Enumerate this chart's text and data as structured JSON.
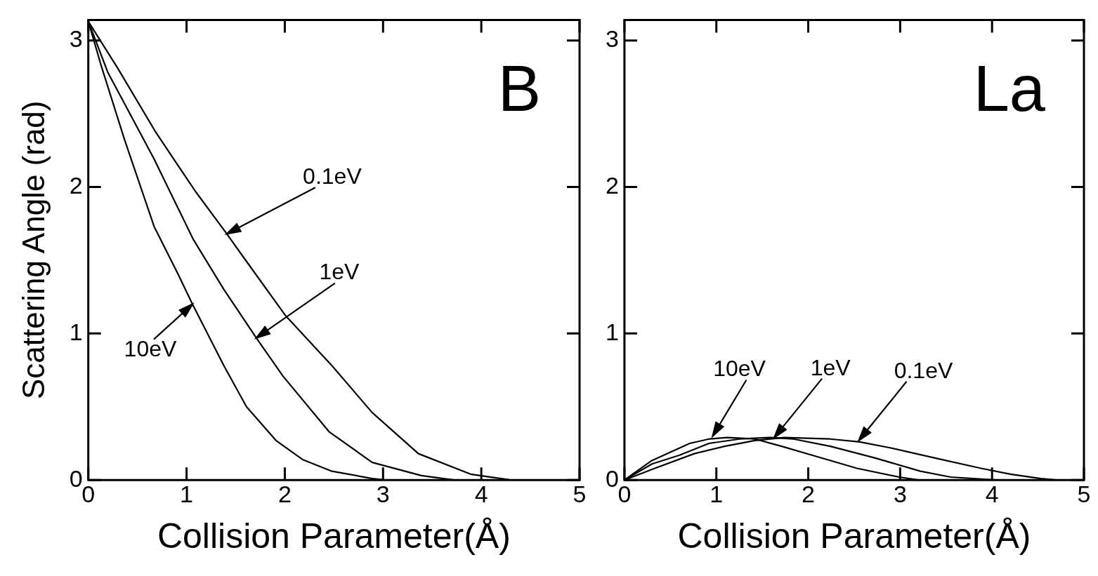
{
  "chart_data": [
    {
      "type": "line",
      "title": "B",
      "xlabel": "Collision Parameter(Å)",
      "ylabel": "Scattering Angle (rad)",
      "xlim": [
        0,
        5
      ],
      "ylim": [
        0,
        3.14
      ],
      "xticks": [
        0,
        1,
        2,
        3,
        4,
        5
      ],
      "yticks": [
        0,
        1,
        2,
        3
      ],
      "grid": false,
      "legend": false,
      "marker": "none",
      "line_style": "solid",
      "series": [
        {
          "color": "#000000",
          "x": [
            0,
            0.3,
            0.69,
            1.09,
            1.41,
            1.58,
            2.01,
            2.48,
            2.89,
            3.36,
            3.89,
            4.3
          ],
          "values": [
            3.13,
            2.81,
            2.37,
            1.97,
            1.68,
            1.52,
            1.12,
            0.78,
            0.46,
            0.18,
            0.04,
            0
          ]
        },
        {
          "color": "#000000",
          "x": [
            0,
            0.2,
            0.67,
            1.07,
            1.38,
            1.71,
            1.98,
            2.45,
            2.89,
            3.39,
            3.72
          ],
          "values": [
            3.13,
            2.78,
            2.19,
            1.64,
            1.3,
            0.97,
            0.71,
            0.33,
            0.12,
            0.03,
            0
          ]
        },
        {
          "color": "#000000",
          "x": [
            0,
            0.13,
            0.37,
            0.67,
            0.91,
            1.06,
            1.38,
            1.61,
            1.91,
            2.18,
            2.48,
            2.89,
            3.02
          ],
          "values": [
            3.13,
            2.83,
            2.32,
            1.73,
            1.41,
            1.2,
            0.78,
            0.5,
            0.27,
            0.14,
            0.06,
            0.01,
            0
          ]
        }
      ],
      "annotations": [
        {
          "text": "0.1eV",
          "x": 1.41,
          "y": 1.68
        },
        {
          "text": "1eV",
          "x": 1.71,
          "y": 0.97
        },
        {
          "text": "10eV",
          "x": 1.06,
          "y": 1.2
        }
      ]
    },
    {
      "type": "line",
      "title": "La",
      "xlabel": "Collision Parameter(Å)",
      "xlim": [
        0,
        5
      ],
      "ylim": [
        0,
        3.14
      ],
      "xticks": [
        0,
        1,
        2,
        3,
        4,
        5
      ],
      "yticks": [
        0,
        1,
        2,
        3
      ],
      "grid": false,
      "legend": false,
      "marker": "none",
      "line_style": "solid",
      "series": [
        {
          "color": "#000000",
          "x": [
            0,
            0.29,
            0.5,
            0.71,
            0.92,
            1.12,
            1.42,
            1.71,
            2.04,
            2.53,
            2.99,
            3.2
          ],
          "values": [
            0,
            0.13,
            0.19,
            0.25,
            0.28,
            0.29,
            0.28,
            0.23,
            0.17,
            0.08,
            0.02,
            0
          ]
        },
        {
          "color": "#000000",
          "x": [
            0,
            0.3,
            0.6,
            0.92,
            1.25,
            1.58,
            1.84,
            2.24,
            2.73,
            3.22,
            3.55,
            4.04
          ],
          "values": [
            0,
            0.11,
            0.17,
            0.25,
            0.28,
            0.29,
            0.28,
            0.23,
            0.15,
            0.06,
            0.02,
            0
          ]
        },
        {
          "color": "#000000",
          "x": [
            0,
            0.33,
            0.76,
            1.09,
            1.42,
            1.74,
            2.24,
            2.56,
            2.89,
            3.38,
            3.88,
            4.2,
            4.53,
            4.7
          ],
          "values": [
            0,
            0.08,
            0.18,
            0.23,
            0.27,
            0.29,
            0.28,
            0.26,
            0.22,
            0.15,
            0.08,
            0.04,
            0.01,
            0
          ]
        }
      ],
      "annotations": [
        {
          "text": "10eV",
          "x": 0.96,
          "y": 0.3
        },
        {
          "text": "1eV",
          "x": 1.63,
          "y": 0.29
        },
        {
          "text": "0.1eV",
          "x": 2.55,
          "y": 0.27
        }
      ]
    }
  ]
}
